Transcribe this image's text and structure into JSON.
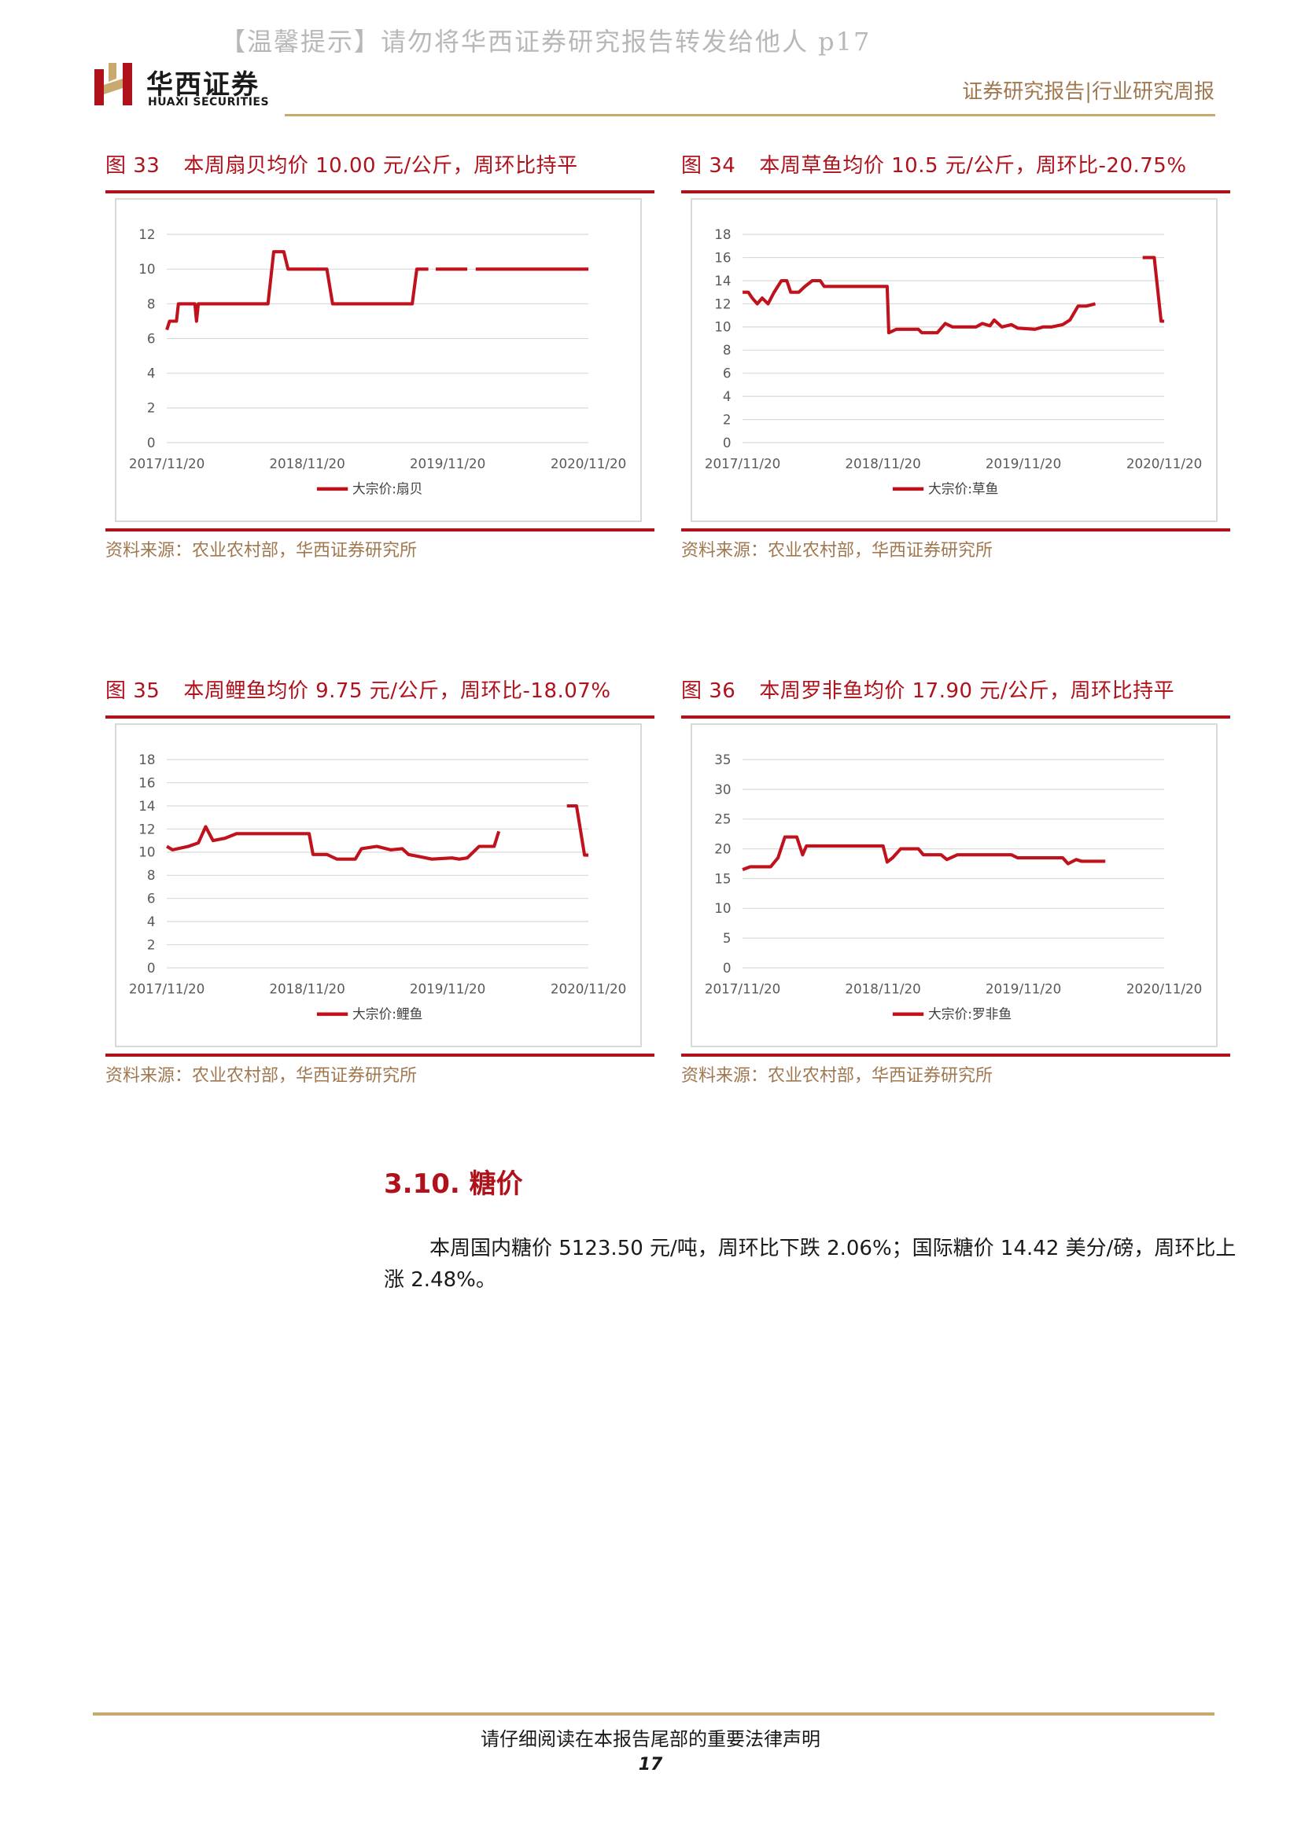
{
  "watermark": "【温馨提示】请勿将华西证券研究报告转发给他人 p17",
  "header": {
    "logo_cn": "华西证券",
    "logo_en": "HUAXI SECURITIES",
    "report_type": "证券研究报告|行业研究周报"
  },
  "colors": {
    "accent_red": "#b0121c",
    "gold": "#c8a96e",
    "source_brown": "#a07850"
  },
  "figures": [
    {
      "number": "图 33",
      "title": "本周扇贝均价 10.00 元/公斤，周环比持平",
      "source": "资料来源：农业农村部，华西证券研究所"
    },
    {
      "number": "图 34",
      "title": "本周草鱼均价 10.5 元/公斤，周环比-20.75%",
      "source": "资料来源：农业农村部，华西证券研究所"
    },
    {
      "number": "图 35",
      "title": "本周鲤鱼均价 9.75 元/公斤，周环比-18.07%",
      "source": "资料来源：农业农村部，华西证券研究所"
    },
    {
      "number": "图 36",
      "title": "本周罗非鱼均价 17.90 元/公斤，周环比持平",
      "source": "资料来源：农业农村部，华西证券研究所"
    }
  ],
  "chart_data": [
    {
      "type": "line",
      "x_ticks": [
        "2017/11/20",
        "2018/11/20",
        "2019/11/20",
        "2020/11/20"
      ],
      "y_ticks": [
        0,
        2,
        4,
        6,
        8,
        10,
        12
      ],
      "ylim": [
        0,
        12
      ],
      "grid": "horizontal",
      "legend_position": "bottom",
      "series": [
        {
          "name": "大宗价:扇贝",
          "color": "#c0121c",
          "segments": [
            [
              [
                "2017/11/20",
                6.5
              ],
              [
                "2017/11/27",
                7
              ],
              [
                "2017/12/15",
                7
              ],
              [
                "2017/12/20",
                8
              ],
              [
                "2018/02/01",
                8
              ],
              [
                "2018/02/05",
                7
              ],
              [
                "2018/02/10",
                8
              ],
              [
                "2018/08/10",
                8
              ],
              [
                "2018/08/25",
                11
              ],
              [
                "2018/09/20",
                11
              ],
              [
                "2018/10/01",
                10
              ],
              [
                "2019/01/10",
                10
              ],
              [
                "2019/01/25",
                8
              ],
              [
                "2019/08/20",
                8
              ],
              [
                "2019/09/01",
                10
              ],
              [
                "2019/10/01",
                10
              ]
            ],
            [
              [
                "2019/10/20",
                10
              ],
              [
                "2020/01/10",
                10
              ]
            ],
            [
              [
                "2020/02/01",
                10
              ],
              [
                "2020/11/20",
                10
              ]
            ]
          ]
        }
      ]
    },
    {
      "type": "line",
      "x_ticks": [
        "2017/11/20",
        "2018/11/20",
        "2019/11/20",
        "2020/11/20"
      ],
      "y_ticks": [
        0,
        2,
        4,
        6,
        8,
        10,
        12,
        14,
        16,
        18
      ],
      "ylim": [
        0,
        18
      ],
      "grid": "horizontal",
      "legend_position": "bottom",
      "series": [
        {
          "name": "大宗价:草鱼",
          "color": "#c0121c",
          "segments": [
            [
              [
                "2017/11/20",
                13
              ],
              [
                "2017/12/05",
                13
              ],
              [
                "2017/12/15",
                12.5
              ],
              [
                "2017/12/28",
                12
              ],
              [
                "2018/01/10",
                12.5
              ],
              [
                "2018/01/25",
                12
              ],
              [
                "2018/02/10",
                13
              ],
              [
                "2018/03/01",
                14
              ],
              [
                "2018/03/15",
                14
              ],
              [
                "2018/03/25",
                13
              ],
              [
                "2018/04/15",
                13
              ],
              [
                "2018/05/01",
                13.5
              ],
              [
                "2018/05/20",
                14
              ],
              [
                "2018/06/10",
                14
              ],
              [
                "2018/06/20",
                13.5
              ],
              [
                "2018/12/01",
                13.5
              ],
              [
                "2018/12/05",
                9.5
              ],
              [
                "2018/12/25",
                9.8
              ],
              [
                "2019/02/20",
                9.8
              ],
              [
                "2019/03/01",
                9.5
              ],
              [
                "2019/04/10",
                9.5
              ],
              [
                "2019/05/01",
                10.3
              ],
              [
                "2019/05/20",
                10
              ],
              [
                "2019/07/20",
                10
              ],
              [
                "2019/08/05",
                10.3
              ],
              [
                "2019/08/25",
                10.1
              ],
              [
                "2019/09/05",
                10.6
              ],
              [
                "2019/09/25",
                10
              ],
              [
                "2019/10/20",
                10.2
              ],
              [
                "2019/11/05",
                9.9
              ],
              [
                "2019/12/20",
                9.8
              ],
              [
                "2020/01/10",
                10
              ],
              [
                "2020/02/01",
                10
              ],
              [
                "2020/03/01",
                10.2
              ],
              [
                "2020/03/20",
                10.6
              ],
              [
                "2020/04/10",
                11.8
              ],
              [
                "2020/05/01",
                11.8
              ],
              [
                "2020/05/25",
                12
              ]
            ],
            [
              [
                "2020/09/25",
                16
              ],
              [
                "2020/10/25",
                16
              ],
              [
                "2020/11/12",
                10.5
              ],
              [
                "2020/11/20",
                10.5
              ]
            ]
          ]
        }
      ]
    },
    {
      "type": "line",
      "x_ticks": [
        "2017/11/20",
        "2018/11/20",
        "2019/11/20",
        "2020/11/20"
      ],
      "y_ticks": [
        0,
        2,
        4,
        6,
        8,
        10,
        12,
        14,
        16,
        18
      ],
      "ylim": [
        0,
        18
      ],
      "grid": "horizontal",
      "legend_position": "bottom",
      "series": [
        {
          "name": "大宗价:鲤鱼",
          "color": "#c0121c",
          "segments": [
            [
              [
                "2017/11/20",
                10.5
              ],
              [
                "2017/12/05",
                10.2
              ],
              [
                "2018/01/15",
                10.5
              ],
              [
                "2018/02/10",
                10.8
              ],
              [
                "2018/03/01",
                12.2
              ],
              [
                "2018/03/20",
                11
              ],
              [
                "2018/04/20",
                11.2
              ],
              [
                "2018/05/20",
                11.6
              ],
              [
                "2018/11/25",
                11.6
              ],
              [
                "2018/12/05",
                9.8
              ],
              [
                "2019/01/10",
                9.8
              ],
              [
                "2019/02/05",
                9.4
              ],
              [
                "2019/03/25",
                9.4
              ],
              [
                "2019/04/10",
                10.3
              ],
              [
                "2019/05/20",
                10.5
              ],
              [
                "2019/06/25",
                10.2
              ],
              [
                "2019/07/25",
                10.3
              ],
              [
                "2019/08/10",
                9.8
              ],
              [
                "2019/09/10",
                9.6
              ],
              [
                "2019/10/10",
                9.4
              ],
              [
                "2019/12/01",
                9.5
              ],
              [
                "2019/12/20",
                9.4
              ],
              [
                "2020/01/10",
                9.5
              ],
              [
                "2020/02/10",
                10.5
              ],
              [
                "2020/03/20",
                10.5
              ],
              [
                "2020/04/01",
                11.8
              ]
            ],
            [
              [
                "2020/09/25",
                14
              ],
              [
                "2020/10/20",
                14
              ],
              [
                "2020/11/10",
                9.75
              ],
              [
                "2020/11/20",
                9.75
              ]
            ]
          ]
        }
      ]
    },
    {
      "type": "line",
      "x_ticks": [
        "2017/11/20",
        "2018/11/20",
        "2019/11/20",
        "2020/11/20"
      ],
      "y_ticks": [
        0,
        5,
        10,
        15,
        20,
        25,
        30,
        35
      ],
      "ylim": [
        0,
        35
      ],
      "grid": "horizontal",
      "legend_position": "bottom",
      "series": [
        {
          "name": "大宗价:罗非鱼",
          "color": "#c0121c",
          "segments": [
            [
              [
                "2017/11/20",
                16.5
              ],
              [
                "2017/12/10",
                17
              ],
              [
                "2018/02/01",
                17
              ],
              [
                "2018/02/20",
                18.5
              ],
              [
                "2018/03/10",
                22
              ],
              [
                "2018/04/10",
                22
              ],
              [
                "2018/04/25",
                19
              ],
              [
                "2018/05/05",
                20.5
              ],
              [
                "2018/11/20",
                20.5
              ],
              [
                "2018/12/01",
                17.8
              ],
              [
                "2018/12/15",
                18.5
              ],
              [
                "2019/01/05",
                20
              ],
              [
                "2019/02/20",
                20
              ],
              [
                "2019/03/05",
                19
              ],
              [
                "2019/04/20",
                19
              ],
              [
                "2019/05/05",
                18.2
              ],
              [
                "2019/06/01",
                19
              ],
              [
                "2019/10/20",
                19
              ],
              [
                "2019/11/05",
                18.5
              ],
              [
                "2020/03/01",
                18.5
              ],
              [
                "2020/03/15",
                17.5
              ],
              [
                "2020/04/05",
                18.2
              ],
              [
                "2020/04/20",
                17.9
              ],
              [
                "2020/06/20",
                17.9
              ]
            ]
          ]
        }
      ]
    }
  ],
  "section": {
    "title": "3.10. 糖价",
    "paragraph": "本周国内糖价 5123.50 元/吨，周环比下跌 2.06%；国际糖价 14.42 美分/磅，周环比上涨 2.48%。"
  },
  "footer": {
    "notice": "请仔细阅读在本报告尾部的重要法律声明",
    "page": "17"
  }
}
